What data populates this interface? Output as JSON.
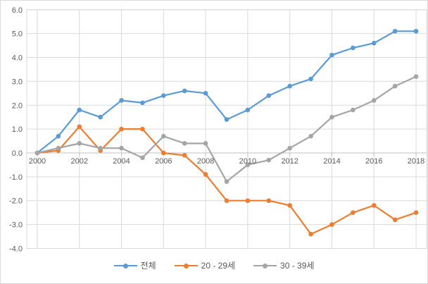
{
  "chart_data": {
    "type": "line",
    "title": "",
    "xlabel": "",
    "ylabel": "",
    "x": [
      2000,
      2001,
      2002,
      2003,
      2004,
      2005,
      2006,
      2007,
      2008,
      2009,
      2010,
      2011,
      2012,
      2013,
      2014,
      2015,
      2016,
      2017,
      2018
    ],
    "x_tick_labels": [
      "2000",
      "2002",
      "2004",
      "2006",
      "2008",
      "2010",
      "2012",
      "2014",
      "2016",
      "2018"
    ],
    "y_tick_labels": [
      "6.0",
      "5.0",
      "4.0",
      "3.0",
      "2.0",
      "1.0",
      "0.0",
      "-1.0",
      "-2.0",
      "-3.0",
      "-4.0"
    ],
    "ylim": [
      -4.0,
      6.0
    ],
    "y_tick_step": 1.0,
    "grid": true,
    "legend_position": "bottom",
    "axis_text_color": "#595959",
    "gridline_color": "#D9D9D9",
    "axis_line_color": "#BFBFBF",
    "series": [
      {
        "name": "전체",
        "color": "#5B9BD5",
        "marker": "circle",
        "values": [
          0.0,
          0.7,
          1.8,
          1.5,
          2.2,
          2.1,
          2.4,
          2.6,
          2.5,
          1.4,
          1.8,
          2.4,
          2.8,
          3.1,
          4.1,
          4.4,
          4.6,
          5.1,
          5.1
        ]
      },
      {
        "name": "20 - 29세",
        "color": "#ED7D31",
        "marker": "circle",
        "values": [
          0.0,
          0.1,
          1.1,
          0.1,
          1.0,
          1.0,
          0.0,
          -0.1,
          -0.9,
          -2.0,
          -2.0,
          -2.0,
          -2.2,
          -3.4,
          -3.0,
          -2.5,
          -2.2,
          -2.8,
          -2.5
        ]
      },
      {
        "name": "30 - 39세",
        "color": "#A5A5A5",
        "marker": "circle",
        "values": [
          0.0,
          0.2,
          0.4,
          0.2,
          0.2,
          -0.2,
          0.7,
          0.4,
          0.4,
          -1.2,
          -0.5,
          -0.3,
          0.2,
          0.7,
          1.5,
          1.8,
          2.2,
          2.8,
          3.2
        ]
      }
    ]
  }
}
